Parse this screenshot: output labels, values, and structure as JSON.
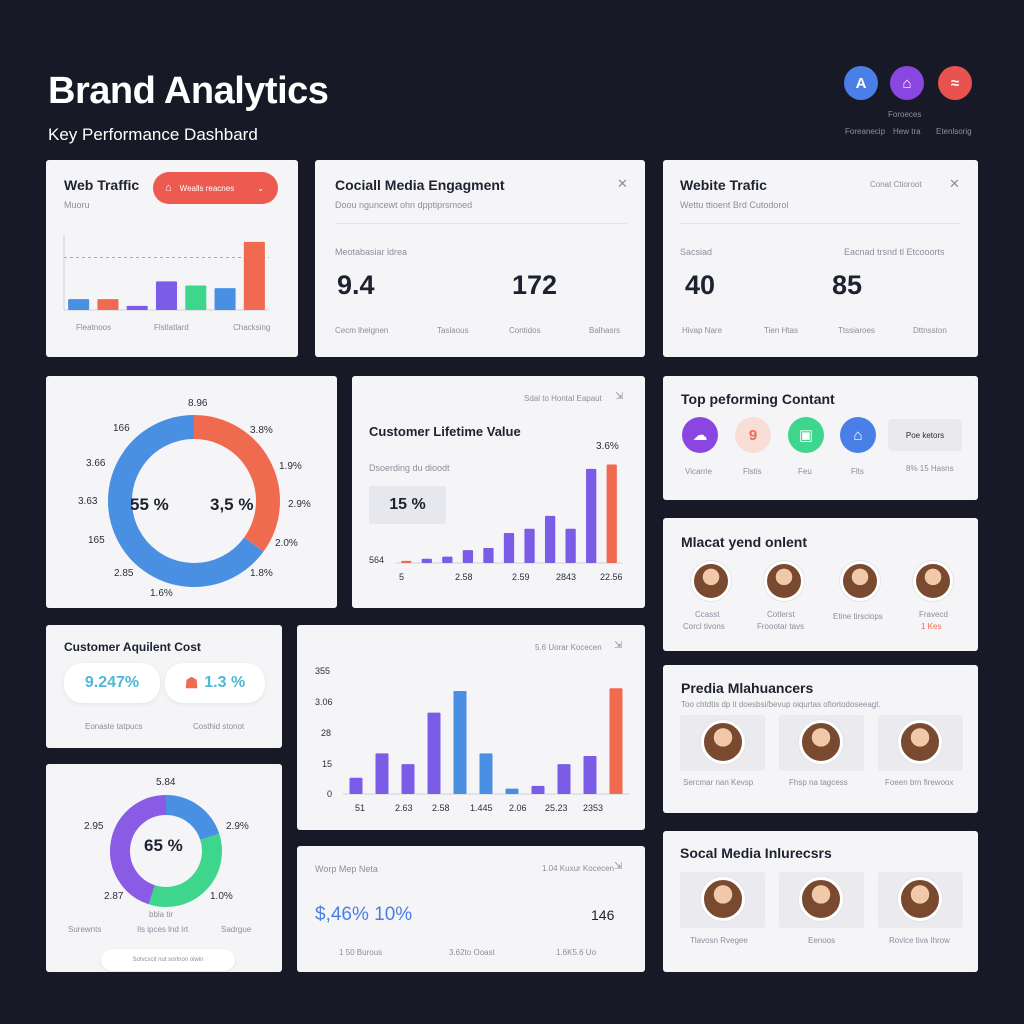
{
  "header": {
    "title": "Brand Analytics",
    "subtitle": "Key Performance Dashbard",
    "icon_tag": "Foroeces",
    "icons": [
      {
        "name": "analytics-icon",
        "glyph": "A",
        "color": "#4a7fe8",
        "label": "Foreanecip"
      },
      {
        "name": "lock-icon",
        "glyph": "⌂",
        "color": "#8a46e0",
        "label": "Hew tra"
      },
      {
        "name": "dash-icon",
        "glyph": "≈",
        "color": "#e8524f",
        "label": "Etenlsorig"
      }
    ]
  },
  "web_traffic": {
    "title": "Web Traffic",
    "button_label": "Wealls reacnes",
    "sub": "Muoru",
    "x_labels": [
      "Fleatnoos",
      "Flstlatlard",
      "Chacksing"
    ],
    "chart_data": {
      "type": "bar",
      "values": [
        8,
        8,
        3,
        21,
        18,
        16,
        50
      ],
      "colors": [
        "#4a90e2",
        "#f06a4f",
        "#7b5ce6",
        "#7b5ce6",
        "#3dd68c",
        "#4a90e2",
        "#f06a4f"
      ],
      "ylim": [
        0,
        55
      ]
    }
  },
  "social_engagement": {
    "title": "Cociall Media Engagment",
    "sub": "Doou nguncewt ohn dpptiprsmoed",
    "label": "Meotabasiar ldrea",
    "values": [
      "9.4",
      "172"
    ],
    "footer": [
      "Cecm lhelgnen",
      "Taslaous",
      "Contidos",
      "Balhasrs"
    ]
  },
  "website_traffic": {
    "title": "Webite Trafic",
    "tag": "Conat Ctioroot",
    "sub": "Wettu ttioent Brd Cutodorol",
    "label_left": "Sacsiad",
    "label_right": "Eacnad trsnd tl Etcooorts",
    "values": [
      "40",
      "85"
    ],
    "footer": [
      "Hivap Nare",
      "Tien Htas",
      "Ttssiaroes",
      "Dttnsston"
    ]
  },
  "donut_main": {
    "labels": [
      "8.96",
      "3.8%",
      "1.9%",
      "2.9%",
      "2.0%",
      "1.8%",
      "1.6%",
      "2.85",
      "165",
      "3.63",
      "3.66",
      "166"
    ],
    "center_left": "55 %",
    "center_right": "3,5 %",
    "chart_data": {
      "type": "pie",
      "values": [
        35,
        65
      ],
      "colors": [
        "#f06a4f",
        "#4a90e2"
      ]
    }
  },
  "clv": {
    "title": "Customer Lifetime Value",
    "tag": "Sdal to Hontal Eapaut",
    "sub": "Dsoerding du dioodt",
    "value": "15 %",
    "top_label": "3.6%",
    "y_label": "564",
    "x_labels": [
      "5",
      "2.58",
      "2.59",
      "2843",
      "22.56"
    ],
    "chart_data": {
      "type": "bar",
      "values": [
        1,
        2,
        3,
        6,
        7,
        14,
        16,
        22,
        16,
        44,
        46
      ],
      "colors": [
        "#f06a4f",
        "#7b5ce6",
        "#7b5ce6",
        "#7b5ce6",
        "#7b5ce6",
        "#7b5ce6",
        "#7b5ce6",
        "#7b5ce6",
        "#7b5ce6",
        "#7b5ce6",
        "#f06a4f"
      ],
      "ylim": [
        0,
        50
      ]
    }
  },
  "top_content": {
    "title": "Top peforming Contant",
    "items": [
      {
        "name": "cloud-icon",
        "glyph": "☁",
        "bg": "#8a46e0",
        "fg": "#ffffff",
        "label": "Vicarrie"
      },
      {
        "name": "number-icon",
        "glyph": "9",
        "bg": "#f8ded6",
        "fg": "#f06a4f",
        "label": "Flstis"
      },
      {
        "name": "image-icon",
        "glyph": "▣",
        "bg": "#3dd68c",
        "fg": "#ffffff",
        "label": "Feu"
      },
      {
        "name": "lock-icon",
        "glyph": "⌂",
        "bg": "#4a7fe8",
        "fg": "#ffffff",
        "label": "Flts"
      }
    ],
    "button_label": "Poe ketors",
    "button_caption": "8% 15 Hasns"
  },
  "recent_content": {
    "title": "Mlacat yend onlent",
    "items": [
      {
        "line1": "Ccasst",
        "line2": "Corcl tivons"
      },
      {
        "line1": "Cotlerst",
        "line2": "Froootar tavs"
      },
      {
        "line1": "Etine tirsciops",
        "line2": ""
      },
      {
        "line1": "Fravecd",
        "line2": "1 Kes"
      }
    ]
  },
  "cac": {
    "title": "Customer Aquilent Cost",
    "value_a": "9.247%",
    "value_b": "1.3 %",
    "label_a": "Eonaste tatpucs",
    "label_b": "Costhid stonot"
  },
  "bar_chart_2": {
    "tag": "5.6 Uorar Kocecen",
    "y_labels": [
      "355",
      "3.06",
      "28",
      "15",
      "0"
    ],
    "x_labels": [
      "51",
      "2.63",
      "2.58",
      "1.445",
      "2.06",
      "25.23",
      "2353"
    ],
    "chart_data": {
      "type": "bar",
      "values": [
        6,
        15,
        11,
        30,
        38,
        15,
        2,
        3,
        11,
        14,
        39
      ],
      "colors": [
        "#7b5ce6",
        "#7b5ce6",
        "#7b5ce6",
        "#7b5ce6",
        "#4a90e2",
        "#4a90e2",
        "#4a90e2",
        "#7b5ce6",
        "#7b5ce6",
        "#7b5ce6",
        "#f06a4f"
      ],
      "ylim": [
        0,
        45
      ]
    }
  },
  "media_influencers": {
    "title": "Predia Mlahuancers",
    "sub": "Too chtdtis dp it doesbsi/bevup oiqurtas ofiortodoseeagt.",
    "items": [
      "Sercmar nan Kevsp",
      "Fhsp na tagcess",
      "Foeen brn firewoox"
    ]
  },
  "donut_small": {
    "top_label": "5.84",
    "labels": [
      "2.95",
      "2.9%",
      "2.87",
      "1.0%"
    ],
    "center": "65 %",
    "bottom_center_a": "bbla tir",
    "bottom_center_b": "Ils ipces lnd Irt",
    "bottom_left": "Surewnts",
    "bottom_right": "Sadrgue",
    "pill_text": "Sotvcscit nut sortnon olwin",
    "chart_data": {
      "type": "pie",
      "values": [
        20,
        35,
        45
      ],
      "colors": [
        "#4a90e2",
        "#3dd68c",
        "#8a5ce6"
      ]
    }
  },
  "summary": {
    "title": "Worp Mep Neta",
    "tag": "1.04 Kuxur Kocecen",
    "value": "$,46% 10%",
    "value_right": "146",
    "footer": [
      "1 50 Burous",
      "3.62to Ooast",
      "1.6K5.6 Uo"
    ]
  },
  "social_influencers": {
    "title": "Socal Media Inlurecsrs",
    "items": [
      "Tlavosn Rvegee",
      "Eenoos",
      "Rovlce tiva Ihrow"
    ]
  }
}
